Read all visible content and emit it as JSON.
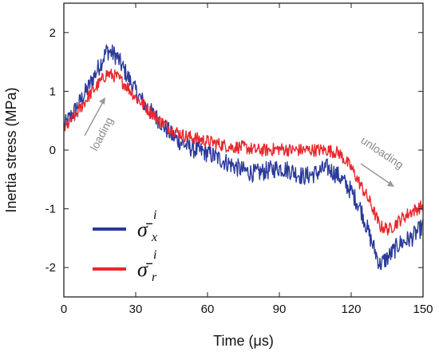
{
  "chart_data": {
    "type": "line",
    "xlabel": "Time (μs)",
    "ylabel": "Inertia stress (MPa)",
    "xlim": [
      0,
      150
    ],
    "ylim": [
      -2.5,
      2.5
    ],
    "xticks": [
      0,
      30,
      60,
      90,
      120,
      150
    ],
    "yticks": [
      -2,
      -1,
      0,
      1,
      2
    ],
    "xtick_labels": [
      "0",
      "30",
      "60",
      "90",
      "120",
      "150"
    ],
    "ytick_labels": [
      "-2",
      "-1",
      "0",
      "1",
      "2"
    ],
    "grid": false,
    "legend_position": "bottom-left",
    "x": [
      0,
      5,
      10,
      15,
      18,
      22,
      26,
      30,
      35,
      40,
      45,
      50,
      55,
      60,
      65,
      70,
      75,
      80,
      85,
      90,
      95,
      100,
      105,
      110,
      115,
      120,
      124,
      128,
      132,
      136,
      140,
      145,
      150
    ],
    "series": [
      {
        "name": "σ̄",
        "legend_sup": "i",
        "legend_sub": "x",
        "color": "#2b3a9b",
        "values": [
          0.4,
          0.7,
          1.05,
          1.45,
          1.7,
          1.6,
          1.3,
          1.0,
          0.7,
          0.5,
          0.25,
          0.1,
          0.0,
          -0.05,
          -0.15,
          -0.25,
          -0.35,
          -0.4,
          -0.35,
          -0.3,
          -0.35,
          -0.45,
          -0.4,
          -0.3,
          -0.45,
          -0.7,
          -1.0,
          -1.5,
          -1.95,
          -1.8,
          -1.6,
          -1.5,
          -1.3
        ]
      },
      {
        "name": "σ̄",
        "legend_sup": "i",
        "legend_sub": "r",
        "color": "#e8282d",
        "values": [
          0.35,
          0.6,
          0.9,
          1.15,
          1.3,
          1.25,
          1.1,
          0.9,
          0.7,
          0.5,
          0.35,
          0.25,
          0.2,
          0.15,
          0.1,
          0.05,
          0.05,
          0.0,
          0.0,
          0.02,
          0.0,
          0.0,
          0.0,
          0.0,
          -0.05,
          -0.3,
          -0.6,
          -0.9,
          -1.3,
          -1.35,
          -1.2,
          -1.05,
          -0.95
        ]
      }
    ],
    "annotations": [
      {
        "text": "loading"
      },
      {
        "text": "unloading"
      }
    ]
  }
}
